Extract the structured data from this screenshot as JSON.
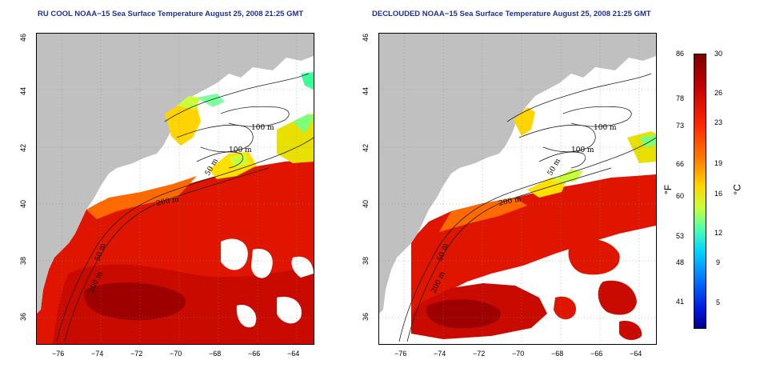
{
  "panels": [
    {
      "title": "RU COOL NOAA−15 Sea Surface Temperature August 25, 2008 21:25 GMT"
    },
    {
      "title": "DECLOUDED NOAA−15 Sea Surface Temperature August 25, 2008 21:25 GMT"
    }
  ],
  "axes": {
    "x_ticks": [
      "−76",
      "−74",
      "−72",
      "−70",
      "−68",
      "−66",
      "−64"
    ],
    "y_ticks": [
      "46",
      "44",
      "42",
      "40",
      "38",
      "36"
    ],
    "lon_range": [
      -77,
      -63
    ],
    "lat_range": [
      35,
      46
    ]
  },
  "contours": {
    "labels": [
      "100 m",
      "100 m",
      "50 m",
      "200 m",
      "50 m",
      "200 m"
    ]
  },
  "colorbar": {
    "fahrenheit_ticks": [
      "86",
      "78",
      "73",
      "66",
      "60",
      "53",
      "48",
      "41"
    ],
    "celsius_ticks": [
      "30",
      "26",
      "23",
      "19",
      "16",
      "12",
      "9",
      "5"
    ],
    "fahrenheit_unit": "°F",
    "celsius_unit": "°C",
    "range_celsius": [
      2,
      30
    ]
  },
  "colors": {
    "land": "#c0c0c0",
    "title": "#1d2f9a",
    "warm": "#e01500",
    "hot": "#9e0000",
    "cool": "#ffe000"
  }
}
